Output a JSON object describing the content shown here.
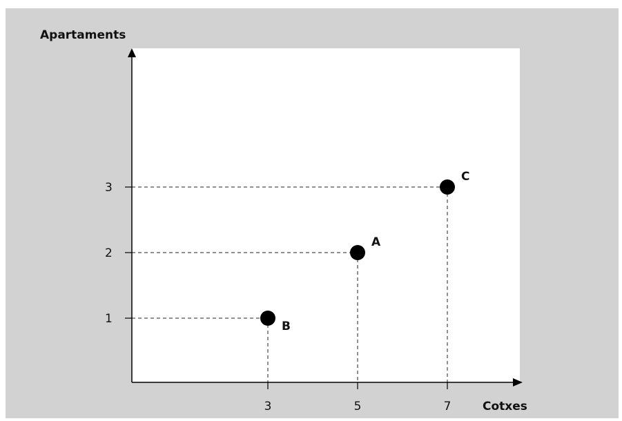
{
  "chart_data": {
    "type": "scatter",
    "xlabel": "Cotxes",
    "ylabel": "Apartaments",
    "x_ticks": [
      3,
      5,
      7
    ],
    "y_ticks": [
      1,
      2,
      3
    ],
    "points": [
      {
        "label": "B",
        "x": 3,
        "y": 1
      },
      {
        "label": "A",
        "x": 5,
        "y": 2
      },
      {
        "label": "C",
        "x": 7,
        "y": 3
      }
    ],
    "grid": false,
    "guide_lines": "dashed",
    "colors": {
      "outer_background": "#d2d2d2",
      "plot_background": "#ffffff",
      "marker": "#000000",
      "axis": "#000000"
    }
  }
}
